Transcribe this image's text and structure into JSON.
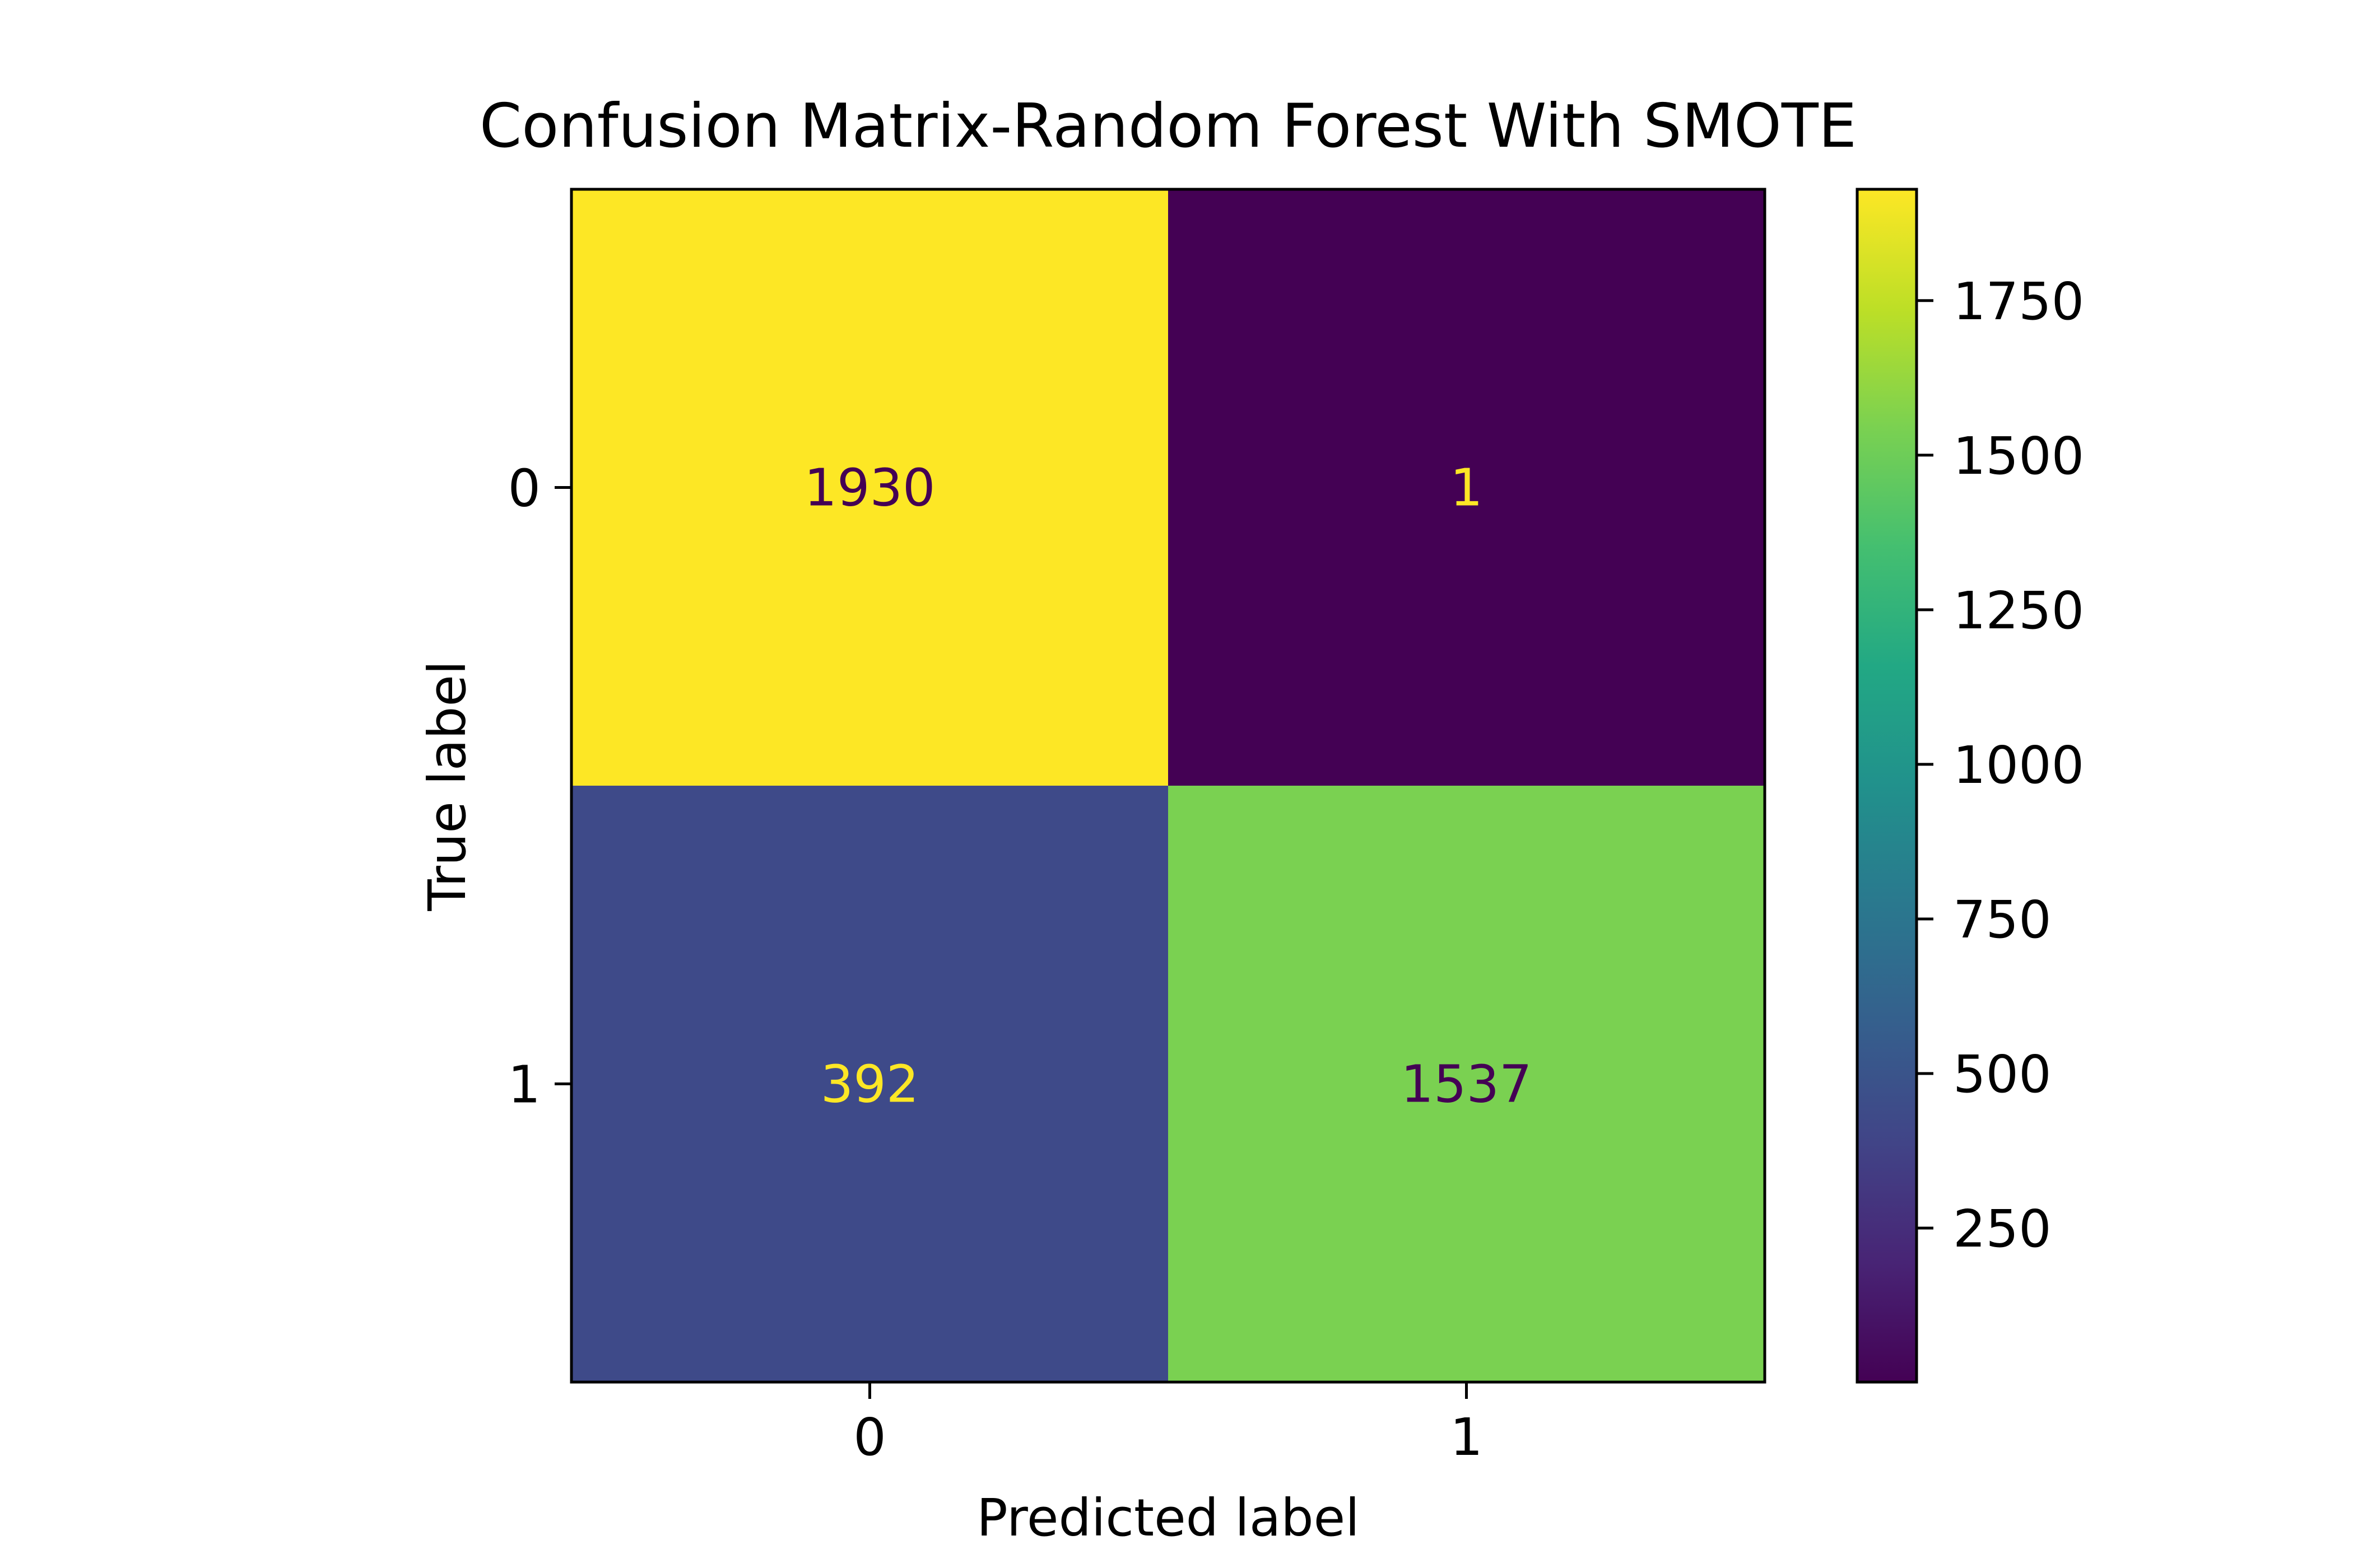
{
  "chart_data": {
    "type": "heatmap",
    "title": "Confusion Matrix-Random Forest With SMOTE",
    "xlabel": "Predicted label",
    "ylabel": "True label",
    "x_categories": [
      "0",
      "1"
    ],
    "y_categories": [
      "0",
      "1"
    ],
    "matrix": [
      [
        1930,
        1
      ],
      [
        392,
        1537
      ]
    ],
    "colormap": "viridis",
    "colorbar": {
      "range": [
        1,
        1930
      ],
      "ticks": [
        250,
        500,
        750,
        1000,
        1250,
        1500,
        1750
      ],
      "tick_labels": [
        "250",
        "500",
        "750",
        "1000",
        "1250",
        "1500",
        "1750"
      ]
    },
    "cell_colors": [
      [
        "#fde725",
        "#440154"
      ],
      [
        "#3e4a89",
        "#7ad151"
      ]
    ],
    "text_colors": [
      [
        "#440154",
        "#fde725"
      ],
      [
        "#fde725",
        "#440154"
      ]
    ],
    "grid": false
  }
}
